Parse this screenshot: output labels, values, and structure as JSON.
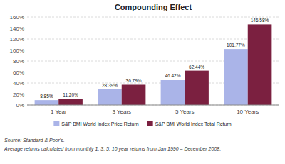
{
  "chart_data": {
    "type": "bar",
    "title": "Compounding Effect",
    "categories": [
      "1 Year",
      "3 Years",
      "5 Years",
      "10 Years"
    ],
    "series": [
      {
        "name": "S&P BMI World Index Price Return",
        "color": "#aab4e8",
        "values": [
          8.85,
          28.39,
          46.42,
          101.77
        ],
        "value_labels": [
          "8.85%",
          "28.39%",
          "46.42%",
          "101.77%"
        ]
      },
      {
        "name": "S&P BMI World Index Total Return",
        "color": "#7b2040",
        "values": [
          11.2,
          36.79,
          62.44,
          146.58
        ],
        "value_labels": [
          "11.20%",
          "36.79%",
          "62.44%",
          "146.58%"
        ]
      }
    ],
    "ylim": [
      0,
      160
    ],
    "yticks": [
      {
        "value": 0,
        "label": "0%"
      },
      {
        "value": 20,
        "label": "20%"
      },
      {
        "value": 40,
        "label": "40%"
      },
      {
        "value": 60,
        "label": "60%"
      },
      {
        "value": 80,
        "label": "80%"
      },
      {
        "value": 100,
        "label": "100%"
      },
      {
        "value": 120,
        "label": "120%"
      },
      {
        "value": 140,
        "label": "140%"
      },
      {
        "value": 160,
        "label": "160%"
      }
    ],
    "grid": true,
    "data_labels": true,
    "legend": "bottom",
    "annotations": [
      "Source:  Standard & Poor's.",
      "Average returns calculated from monthly 1, 3, 5, 10 year returns from Jan 1990 – December 2008."
    ]
  }
}
